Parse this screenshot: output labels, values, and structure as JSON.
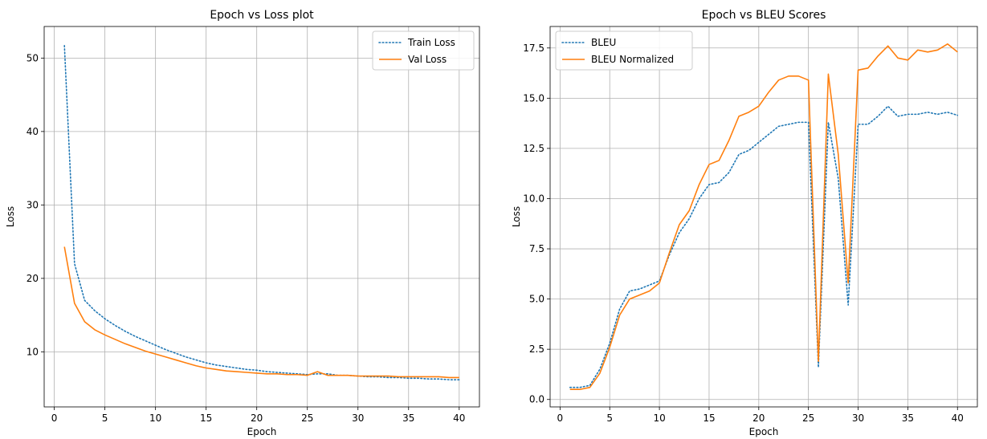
{
  "colors": {
    "series1": "#1f77b4",
    "series2": "#ff7f0e",
    "grid": "#b0b0b0"
  },
  "chart_data": [
    {
      "type": "line",
      "title": "Epoch vs Loss plot",
      "xlabel": "Epoch",
      "ylabel": "Loss",
      "xlim": [
        -1,
        42
      ],
      "ylim": [
        2.5,
        54.3
      ],
      "xticks": [
        0,
        5,
        10,
        15,
        20,
        25,
        30,
        35,
        40
      ],
      "yticks": [
        10,
        20,
        30,
        40,
        50
      ],
      "grid": true,
      "legend": "top-right",
      "x": [
        1,
        2,
        3,
        4,
        5,
        6,
        7,
        8,
        9,
        10,
        11,
        12,
        13,
        14,
        15,
        16,
        17,
        18,
        19,
        20,
        21,
        22,
        23,
        24,
        25,
        26,
        27,
        28,
        29,
        30,
        31,
        32,
        33,
        34,
        35,
        36,
        37,
        38,
        39,
        40
      ],
      "series": [
        {
          "name": "Train Loss",
          "style": "dotted",
          "values": [
            51.7,
            22.0,
            17.0,
            15.6,
            14.5,
            13.6,
            12.8,
            12.1,
            11.5,
            10.9,
            10.3,
            9.8,
            9.3,
            8.9,
            8.5,
            8.2,
            8.0,
            7.8,
            7.6,
            7.5,
            7.3,
            7.2,
            7.1,
            7.0,
            6.9,
            7.0,
            7.0,
            6.8,
            6.8,
            6.7,
            6.6,
            6.6,
            6.5,
            6.5,
            6.4,
            6.4,
            6.3,
            6.3,
            6.2,
            6.2
          ]
        },
        {
          "name": "Val Loss",
          "style": "solid",
          "values": [
            24.3,
            16.6,
            14.1,
            13.0,
            12.3,
            11.7,
            11.1,
            10.6,
            10.1,
            9.7,
            9.3,
            8.9,
            8.5,
            8.1,
            7.8,
            7.6,
            7.4,
            7.3,
            7.2,
            7.1,
            7.0,
            7.0,
            6.9,
            6.9,
            6.8,
            7.3,
            6.8,
            6.8,
            6.8,
            6.7,
            6.7,
            6.7,
            6.7,
            6.6,
            6.6,
            6.6,
            6.6,
            6.6,
            6.5,
            6.5
          ]
        }
      ]
    },
    {
      "type": "line",
      "title": "Epoch vs BLEU Scores",
      "xlabel": "Epoch",
      "ylabel": "Loss",
      "xlim": [
        -1,
        42
      ],
      "ylim": [
        -0.37,
        18.57
      ],
      "xticks": [
        0,
        5,
        10,
        15,
        20,
        25,
        30,
        35,
        40
      ],
      "yticks": [
        0.0,
        2.5,
        5.0,
        7.5,
        10.0,
        12.5,
        15.0,
        17.5
      ],
      "ytick_labels": [
        "0.0",
        "2.5",
        "5.0",
        "7.5",
        "10.0",
        "12.5",
        "15.0",
        "17.5"
      ],
      "grid": true,
      "legend": "top-left",
      "x": [
        1,
        2,
        3,
        4,
        5,
        6,
        7,
        8,
        9,
        10,
        11,
        12,
        13,
        14,
        15,
        16,
        17,
        18,
        19,
        20,
        21,
        22,
        23,
        24,
        25,
        26,
        27,
        28,
        29,
        30,
        31,
        32,
        33,
        34,
        35,
        36,
        37,
        38,
        39,
        40
      ],
      "series": [
        {
          "name": "BLEU",
          "style": "dotted",
          "values": [
            0.6,
            0.6,
            0.7,
            1.5,
            2.8,
            4.5,
            5.4,
            5.5,
            5.7,
            5.9,
            7.2,
            8.3,
            9.0,
            10.0,
            10.7,
            10.8,
            11.3,
            12.2,
            12.4,
            12.8,
            13.2,
            13.6,
            13.7,
            13.8,
            13.8,
            1.6,
            13.8,
            11.0,
            4.7,
            13.7,
            13.7,
            14.1,
            14.6,
            14.1,
            14.2,
            14.2,
            14.3,
            14.2,
            14.3,
            14.15
          ]
        },
        {
          "name": "BLEU Normalized",
          "style": "solid",
          "values": [
            0.5,
            0.5,
            0.6,
            1.3,
            2.6,
            4.2,
            5.0,
            5.2,
            5.4,
            5.8,
            7.3,
            8.7,
            9.4,
            10.7,
            11.7,
            11.9,
            12.9,
            14.1,
            14.3,
            14.6,
            15.3,
            15.9,
            16.1,
            16.1,
            15.9,
            1.9,
            16.2,
            12.2,
            5.8,
            16.4,
            16.5,
            17.1,
            17.6,
            17.0,
            16.9,
            17.4,
            17.3,
            17.4,
            17.7,
            17.3
          ]
        }
      ]
    }
  ]
}
